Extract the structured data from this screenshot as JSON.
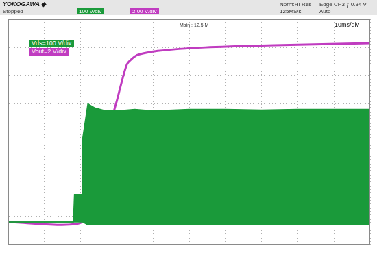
{
  "chart_data": {
    "type": "line",
    "annotations": [
      "YOKOGAWA ◆",
      "Stopped",
      "100 V/div",
      "2.00 V/div",
      "Norm:Hi-Res",
      "125MS/s",
      "Edge CH3 ƒ 0.34 V",
      "Auto",
      "Main : 12.5 M",
      "10ms/div"
    ],
    "xlim": [
      0,
      100
    ],
    "xticks": [
      0,
      10,
      20,
      30,
      40,
      50,
      60,
      70,
      80,
      90,
      100
    ],
    "ylim": [
      -80,
      720
    ],
    "yticks": [
      -80,
      20,
      120,
      220,
      320,
      420,
      520,
      620,
      720
    ],
    "y2lim": [
      -1.6,
      14.4
    ],
    "y2ticks": [
      -1.6,
      0.4,
      2.4,
      4.4,
      6.4,
      8.4,
      10.4,
      12.4,
      14.4
    ],
    "grid": true,
    "tick_labels": false,
    "legend": "top-left",
    "series": [
      {
        "name": "Vds=100 V/div",
        "color": "#1a9a3a",
        "x": [
          0,
          18,
          18.3,
          20.4,
          20.6,
          22,
          24,
          27,
          30,
          35,
          40,
          50,
          60,
          70,
          80,
          90,
          100
        ],
        "values": [
          0,
          0,
          98,
          98,
          300,
          420,
          405,
          395,
          395,
          400,
          395,
          400,
          400,
          398,
          400,
          400,
          400
        ],
        "low": [
          0,
          0,
          0,
          0,
          0,
          -10,
          -10,
          -10,
          -10,
          -10,
          -10,
          -10,
          -10,
          -10,
          -10,
          -10,
          -10
        ]
      },
      {
        "name": "Vout=2 V/div",
        "color": "#c03cc0",
        "axis": "y2",
        "x": [
          0,
          20.5,
          25,
          30,
          32.8,
          35.6,
          41.3,
          54.5,
          73.5,
          100
        ],
        "values": [
          0,
          0,
          4.1,
          8.6,
          11.2,
          11.85,
          12.15,
          12.4,
          12.55,
          12.7
        ]
      }
    ]
  }
}
